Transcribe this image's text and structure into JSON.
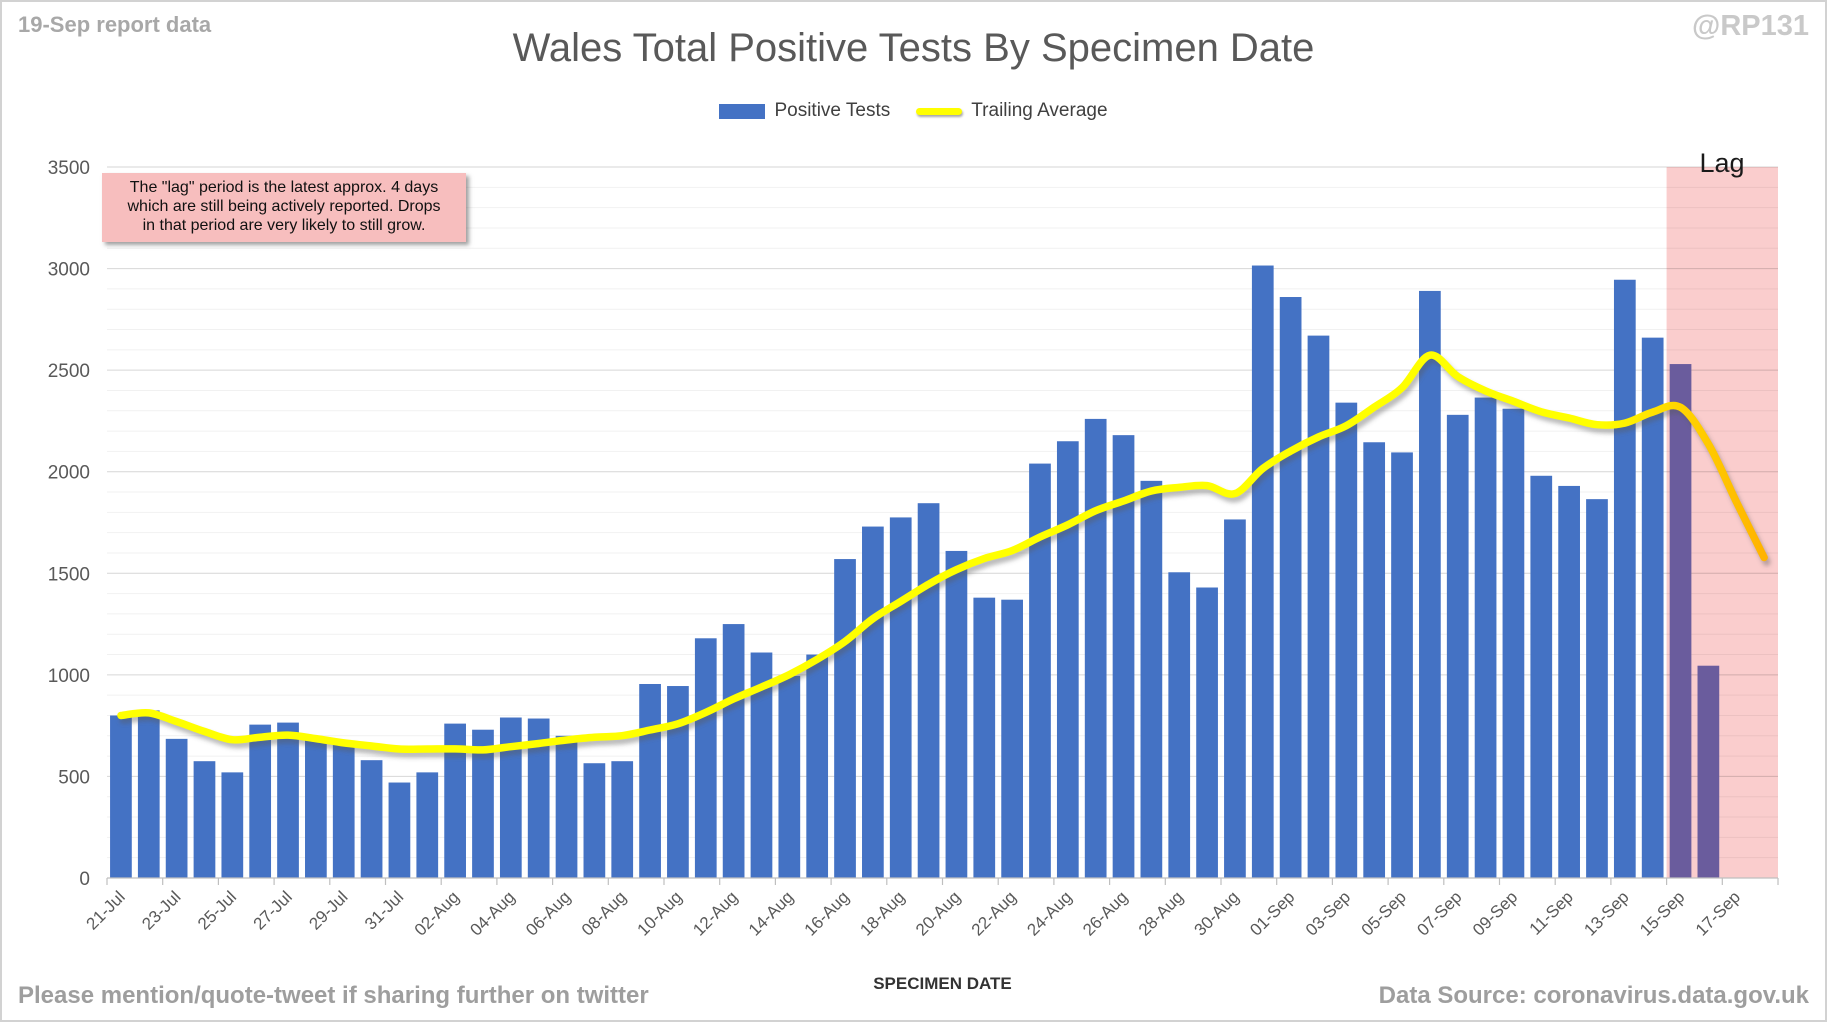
{
  "header": {
    "report_note": "19-Sep report data",
    "watermark": "@RP131",
    "title": "Wales Total Positive Tests By Specimen Date"
  },
  "legend": [
    {
      "label": "Positive Tests",
      "swatch": "bar",
      "color": "#4472C4"
    },
    {
      "label": "Trailing Average",
      "swatch": "line",
      "color": "#FFFF00"
    }
  ],
  "annotation": {
    "text": "The \"lag\" period is the latest approx. 4 days\nwhich are still being actively reported. Drops\nin that period are very likely to still grow.",
    "bg_color": "#F7BEBE"
  },
  "footer": {
    "share_note": "Please mention/quote-tweet if sharing further on twitter",
    "xaxis_title": "SPECIMEN DATE",
    "source": "Data Source: coronavirus.data.gov.uk"
  },
  "chart_data": {
    "type": "bar",
    "title": "Wales Total Positive Tests By Specimen Date",
    "xlabel": "SPECIMEN DATE",
    "ylabel": "",
    "ylim": [
      0,
      3500
    ],
    "ytick_interval": 500,
    "minor_gridline_interval": 100,
    "grid": "on",
    "legend_position": "top-center",
    "categories": [
      "21-Jul",
      "22-Jul",
      "23-Jul",
      "24-Jul",
      "25-Jul",
      "26-Jul",
      "27-Jul",
      "28-Jul",
      "29-Jul",
      "30-Jul",
      "31-Jul",
      "01-Aug",
      "02-Aug",
      "03-Aug",
      "04-Aug",
      "05-Aug",
      "06-Aug",
      "07-Aug",
      "08-Aug",
      "09-Aug",
      "10-Aug",
      "11-Aug",
      "12-Aug",
      "13-Aug",
      "14-Aug",
      "15-Aug",
      "16-Aug",
      "17-Aug",
      "18-Aug",
      "19-Aug",
      "20-Aug",
      "21-Aug",
      "22-Aug",
      "23-Aug",
      "24-Aug",
      "25-Aug",
      "26-Aug",
      "27-Aug",
      "28-Aug",
      "29-Aug",
      "30-Aug",
      "31-Aug",
      "01-Sep",
      "02-Sep",
      "03-Sep",
      "04-Sep",
      "05-Sep",
      "06-Sep",
      "07-Sep",
      "08-Sep",
      "09-Sep",
      "10-Sep",
      "11-Sep",
      "12-Sep",
      "13-Sep",
      "14-Sep",
      "15-Sep",
      "16-Sep",
      "17-Sep",
      "18-Sep"
    ],
    "xtick_labels": [
      "21-Jul",
      "23-Jul",
      "25-Jul",
      "27-Jul",
      "29-Jul",
      "31-Jul",
      "02-Aug",
      "04-Aug",
      "06-Aug",
      "08-Aug",
      "10-Aug",
      "12-Aug",
      "14-Aug",
      "16-Aug",
      "18-Aug",
      "20-Aug",
      "22-Aug",
      "24-Aug",
      "26-Aug",
      "28-Aug",
      "30-Aug",
      "01-Sep",
      "03-Sep",
      "05-Sep",
      "07-Sep",
      "09-Sep",
      "11-Sep",
      "13-Sep",
      "15-Sep",
      "17-Sep"
    ],
    "series": [
      {
        "name": "Positive Tests",
        "type": "bar",
        "color": "#4472C4",
        "values": [
          800,
          825,
          685,
          575,
          520,
          755,
          765,
          680,
          675,
          580,
          470,
          520,
          760,
          730,
          790,
          785,
          700,
          565,
          575,
          955,
          945,
          1180,
          1250,
          1110,
          995,
          1100,
          1570,
          1730,
          1775,
          1845,
          1610,
          1380,
          1370,
          2040,
          2150,
          2260,
          2180,
          1955,
          1505,
          1430,
          1765,
          3015,
          2860,
          2670,
          2340,
          2145,
          2095,
          2890,
          2280,
          2365,
          2310,
          1980,
          1930,
          1865,
          2945,
          2660,
          2530,
          1045,
          0,
          0
        ]
      },
      {
        "name": "Trailing Average",
        "type": "line",
        "color": "#FFFF00",
        "end_color": "#FFB300",
        "derived": "7-day trailing mean of Positive Tests (partial windows at start, zero-filled final days)",
        "window": 7
      }
    ],
    "lag_region": {
      "label": "Lag",
      "start_category": "15-Sep",
      "start_index": 56,
      "region_color": "#FACDCD",
      "lag_bar_color": "#6A5C9D",
      "description_days": 4
    },
    "gridline_major_color": "#D9D9D9",
    "gridline_minor_color": "#F1F1F1",
    "axis_label_color": "#595959"
  }
}
